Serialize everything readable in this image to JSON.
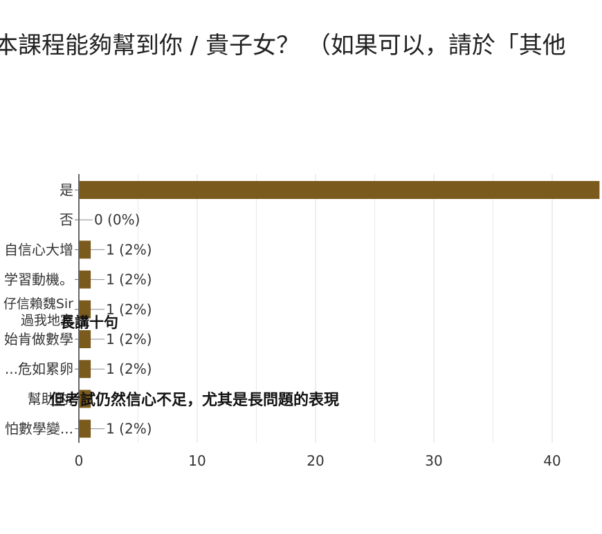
{
  "chart_data": {
    "type": "bar",
    "orientation": "horizontal",
    "title": "本課程能夠幫到你 / 貴子女？ （如果可以，請於「其他",
    "categories": [
      "是",
      "否",
      "自信心大增",
      "学習動機。",
      "仔信賴魏Sir\n過我地家",
      "始肯做數學",
      "...危如累卵",
      "幫助的,",
      "怕數學變..."
    ],
    "series": [
      {
        "values": [
          44,
          0,
          1,
          1,
          1,
          1,
          1,
          1,
          1
        ],
        "value_labels": [
          "",
          "0 (0%)",
          "1 (2%)",
          "1 (2%)",
          "1 (2%)",
          "1 (2%)",
          "1 (2%)",
          "",
          "1 (2%)"
        ]
      }
    ],
    "xlim": [
      0,
      45
    ],
    "xticks": [
      0,
      10,
      20,
      30,
      40
    ],
    "grid": true,
    "bar_color": "#7a5a1d",
    "axis_color": "#666666",
    "grid_color": "#e8e8e8",
    "annotations": [
      "長講十句",
      "但考試仍然信心不足，尤其是長問題的表現"
    ]
  }
}
